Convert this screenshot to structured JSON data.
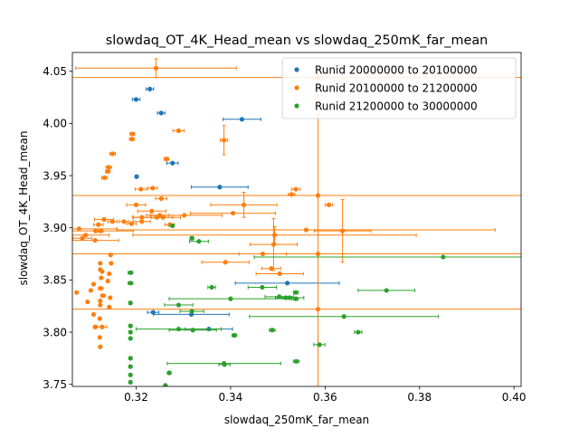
{
  "chart_data": {
    "type": "scatter",
    "title": "slowdaq_OT_4K_Head_mean vs slowdaq_250mK_far_mean",
    "xlabel": "slowdaq_250mK_far_mean",
    "ylabel": "slowdaq_OT_4K_Head_mean",
    "xlim": [
      0.3065,
      0.4015
    ],
    "ylim": [
      3.748,
      4.068
    ],
    "xticks": [
      0.32,
      0.34,
      0.36,
      0.38,
      0.4
    ],
    "xtick_labels": [
      "0.32",
      "0.34",
      "0.36",
      "0.38",
      "0.40"
    ],
    "yticks": [
      3.75,
      3.8,
      3.85,
      3.9,
      3.95,
      4.0,
      4.05
    ],
    "ytick_labels": [
      "3.75",
      "3.80",
      "3.85",
      "3.90",
      "3.95",
      "4.00",
      "4.05"
    ],
    "grid": false,
    "legend_position": "top-right",
    "error_bars": true,
    "series": [
      {
        "name": "Runid 20000000 to 20100000",
        "color": "#1f77b4",
        "points": [
          {
            "x": 0.32,
            "y": 4.023,
            "xerr": 0.0008
          },
          {
            "x": 0.3229,
            "y": 4.033,
            "xerr": 0.0008
          },
          {
            "x": 0.3253,
            "y": 4.01,
            "xerr": 0.0008
          },
          {
            "x": 0.3424,
            "y": 4.004,
            "xerr": 0.004
          },
          {
            "x": 0.3277,
            "y": 3.962,
            "xerr": 0.0012
          },
          {
            "x": 0.3201,
            "y": 3.949,
            "xerr": 0.0003
          },
          {
            "x": 0.3377,
            "y": 3.939,
            "xerr": 0.006
          },
          {
            "x": 0.352,
            "y": 3.847,
            "xerr": 0.011
          },
          {
            "x": 0.3236,
            "y": 3.819,
            "xerr": 0.0012
          },
          {
            "x": 0.3317,
            "y": 3.817,
            "xerr": 0.008
          },
          {
            "x": 0.3354,
            "y": 3.803,
            "xerr": 0.005
          }
        ]
      },
      {
        "name": "Runid 20100000 to 21200000",
        "color": "#ff7f0e",
        "points": [
          {
            "x": 0.3242,
            "y": 4.053,
            "xerr": 0.017,
            "yerr": 0.009
          },
          {
            "x": 0.3585,
            "y": 4.044,
            "xerr": 0.09
          },
          {
            "x": 0.329,
            "y": 3.993,
            "xerr": 0.0012
          },
          {
            "x": 0.3191,
            "y": 3.985,
            "xerr": 0.0005
          },
          {
            "x": 0.3192,
            "y": 3.99,
            "xerr": 0.0005
          },
          {
            "x": 0.3386,
            "y": 3.984,
            "xerr": 0.0008,
            "yerr": 0.014
          },
          {
            "x": 0.315,
            "y": 3.971,
            "xerr": 0.0006
          },
          {
            "x": 0.3264,
            "y": 3.966,
            "xerr": 0.0005
          },
          {
            "x": 0.3142,
            "y": 3.958,
            "xerr": 0.0006
          },
          {
            "x": 0.314,
            "y": 3.954,
            "xerr": 0.0005
          },
          {
            "x": 0.3133,
            "y": 3.948,
            "xerr": 0.0006
          },
          {
            "x": 0.3585,
            "y": 3.931,
            "xerr": 0.07
          },
          {
            "x": 0.321,
            "y": 3.937,
            "xerr": 0.0012
          },
          {
            "x": 0.3235,
            "y": 3.938,
            "xerr": 0.001
          },
          {
            "x": 0.3538,
            "y": 3.937,
            "xerr": 0.0009
          },
          {
            "x": 0.3529,
            "y": 3.932,
            "xerr": 0.0007
          },
          {
            "x": 0.3253,
            "y": 3.928,
            "xerr": 0.0012
          },
          {
            "x": 0.32,
            "y": 3.922,
            "xerr": 0.002
          },
          {
            "x": 0.3428,
            "y": 3.922,
            "xerr": 0.007,
            "yerr": 0.012
          },
          {
            "x": 0.3608,
            "y": 3.922,
            "xerr": 0.0008
          },
          {
            "x": 0.3233,
            "y": 3.916,
            "xerr": 0.003
          },
          {
            "x": 0.3405,
            "y": 3.914,
            "xerr": 0.009
          },
          {
            "x": 0.3302,
            "y": 3.912,
            "xerr": 0.008
          },
          {
            "x": 0.3257,
            "y": 3.91,
            "xerr": 0.002
          },
          {
            "x": 0.3212,
            "y": 3.91,
            "xerr": 0.002
          },
          {
            "x": 0.3132,
            "y": 3.908,
            "xerr": 0.002
          },
          {
            "x": 0.315,
            "y": 3.906,
            "xerr": 0.001
          },
          {
            "x": 0.3174,
            "y": 3.906,
            "xerr": 0.001
          },
          {
            "x": 0.319,
            "y": 3.904,
            "xerr": 0.001
          },
          {
            "x": 0.312,
            "y": 3.903,
            "xerr": 0.001
          },
          {
            "x": 0.3114,
            "y": 3.897,
            "xerr": 0.008
          },
          {
            "x": 0.3125,
            "y": 3.897,
            "xerr": 0.0005
          },
          {
            "x": 0.3212,
            "y": 3.906,
            "xerr": 0.0018
          },
          {
            "x": 0.3271,
            "y": 3.903,
            "xerr": 0.001
          },
          {
            "x": 0.3244,
            "y": 3.91,
            "xerr": 0.005
          },
          {
            "x": 0.325,
            "y": 3.912,
            "xerr": 0.002
          },
          {
            "x": 0.3079,
            "y": 3.899,
            "xerr": 0.008
          },
          {
            "x": 0.3093,
            "y": 3.893,
            "xerr": 0.005
          },
          {
            "x": 0.3086,
            "y": 3.89,
            "xerr": 0.002
          },
          {
            "x": 0.3113,
            "y": 3.888,
            "xerr": 0.005
          },
          {
            "x": 0.356,
            "y": 3.898,
            "xerr": 0.04
          },
          {
            "x": 0.3637,
            "y": 3.897,
            "xerr": 0.006,
            "yerr": 0.03
          },
          {
            "x": 0.3493,
            "y": 3.893,
            "xerr": 0.03,
            "yerr": 0.008
          },
          {
            "x": 0.3491,
            "y": 3.884,
            "xerr": 0.005,
            "yerr": 0.025
          },
          {
            "x": 0.3585,
            "y": 3.875,
            "xerr": 0.055,
            "yerr": 0.18
          },
          {
            "x": 0.3146,
            "y": 3.874,
            "xerr": 0.0002
          },
          {
            "x": 0.3468,
            "y": 3.875,
            "xerr": 0.005
          },
          {
            "x": 0.3389,
            "y": 3.867,
            "xerr": 0.005
          },
          {
            "x": 0.3486,
            "y": 3.861,
            "xerr": 0.002
          },
          {
            "x": 0.3124,
            "y": 3.866,
            "xerr": 0.0001
          },
          {
            "x": 0.3147,
            "y": 3.866,
            "xerr": 0.0001
          },
          {
            "x": 0.3124,
            "y": 3.86,
            "xerr": 0.0001
          },
          {
            "x": 0.3128,
            "y": 3.858,
            "xerr": 0.0001
          },
          {
            "x": 0.3143,
            "y": 3.856,
            "xerr": 0.0002
          },
          {
            "x": 0.3126,
            "y": 3.852,
            "xerr": 0.0002
          },
          {
            "x": 0.314,
            "y": 3.849,
            "xerr": 0.0002
          },
          {
            "x": 0.311,
            "y": 3.846,
            "xerr": 0.0002
          },
          {
            "x": 0.3125,
            "y": 3.842,
            "xerr": 0.0005
          },
          {
            "x": 0.3104,
            "y": 3.84,
            "xerr": 0.0002
          },
          {
            "x": 0.3074,
            "y": 3.838,
            "xerr": 0.0001
          },
          {
            "x": 0.313,
            "y": 3.835,
            "xerr": 0.0005
          },
          {
            "x": 0.3145,
            "y": 3.833,
            "xerr": 0.0002
          },
          {
            "x": 0.3124,
            "y": 3.83,
            "xerr": 0.0002
          },
          {
            "x": 0.3097,
            "y": 3.829,
            "xerr": 0.0002
          },
          {
            "x": 0.3124,
            "y": 3.826,
            "xerr": 0.0002
          },
          {
            "x": 0.3143,
            "y": 3.824,
            "xerr": 0.0002
          },
          {
            "x": 0.3585,
            "y": 3.822,
            "xerr": 0.08
          },
          {
            "x": 0.311,
            "y": 3.817,
            "xerr": 0.0002
          },
          {
            "x": 0.3123,
            "y": 3.813,
            "xerr": 0.0002
          },
          {
            "x": 0.3128,
            "y": 3.805,
            "xerr": 0.001
          },
          {
            "x": 0.3113,
            "y": 3.805,
            "xerr": 0.0003
          },
          {
            "x": 0.3123,
            "y": 3.795,
            "xerr": 0.0001
          },
          {
            "x": 0.3124,
            "y": 3.786,
            "xerr": 0.0001
          },
          {
            "x": 0.3504,
            "y": 3.856,
            "xerr": 0.005
          }
        ]
      },
      {
        "name": "Runid 21200000 to 30000000",
        "color": "#2ca02c",
        "points": [
          {
            "x": 0.3277,
            "y": 3.902,
            "xerr": 0.0003
          },
          {
            "x": 0.3318,
            "y": 3.89,
            "xerr": 0.0004
          },
          {
            "x": 0.3333,
            "y": 3.887,
            "xerr": 0.002
          },
          {
            "x": 0.3188,
            "y": 3.857,
            "xerr": 0.0005
          },
          {
            "x": 0.3188,
            "y": 3.847,
            "xerr": 0.0005
          },
          {
            "x": 0.336,
            "y": 3.843,
            "xerr": 0.0008
          },
          {
            "x": 0.3467,
            "y": 3.843,
            "xerr": 0.003
          },
          {
            "x": 0.373,
            "y": 3.84,
            "xerr": 0.006
          },
          {
            "x": 0.3538,
            "y": 3.838,
            "xerr": 0.0005
          },
          {
            "x": 0.3503,
            "y": 3.834,
            "xerr": 0.003
          },
          {
            "x": 0.3517,
            "y": 3.833,
            "xerr": 0.0007
          },
          {
            "x": 0.3525,
            "y": 3.833,
            "xerr": 0.003
          },
          {
            "x": 0.3538,
            "y": 3.832,
            "xerr": 0.0005
          },
          {
            "x": 0.34,
            "y": 3.832,
            "xerr": 0.013
          },
          {
            "x": 0.3188,
            "y": 3.828,
            "xerr": 0.0003
          },
          {
            "x": 0.329,
            "y": 3.826,
            "xerr": 0.003
          },
          {
            "x": 0.3318,
            "y": 3.82,
            "xerr": 0.0025
          },
          {
            "x": 0.364,
            "y": 3.815,
            "xerr": 0.02
          },
          {
            "x": 0.3188,
            "y": 3.806,
            "xerr": 0.0003
          },
          {
            "x": 0.3188,
            "y": 3.8,
            "xerr": 0.0003
          },
          {
            "x": 0.329,
            "y": 3.803,
            "xerr": 0.009
          },
          {
            "x": 0.332,
            "y": 3.802,
            "xerr": 0.005
          },
          {
            "x": 0.3488,
            "y": 3.802,
            "xerr": 0.0006
          },
          {
            "x": 0.367,
            "y": 3.8,
            "xerr": 0.0008
          },
          {
            "x": 0.3188,
            "y": 3.794,
            "xerr": 0.0003
          },
          {
            "x": 0.3408,
            "y": 3.797,
            "xerr": 0.0005
          },
          {
            "x": 0.3588,
            "y": 3.788,
            "xerr": 0.0012
          },
          {
            "x": 0.3188,
            "y": 3.775,
            "xerr": 0.0003
          },
          {
            "x": 0.3539,
            "y": 3.772,
            "xerr": 0.0006
          },
          {
            "x": 0.3387,
            "y": 3.769,
            "xerr": 0.0012
          },
          {
            "x": 0.3386,
            "y": 3.77,
            "xerr": 0.012
          },
          {
            "x": 0.3188,
            "y": 3.767,
            "xerr": 0.0003
          },
          {
            "x": 0.327,
            "y": 3.761,
            "xerr": 0.0004
          },
          {
            "x": 0.3188,
            "y": 3.759,
            "xerr": 0.0003
          },
          {
            "x": 0.3188,
            "y": 3.752,
            "xerr": 0.0003
          },
          {
            "x": 0.3262,
            "y": 3.749,
            "xerr": 0.0002
          },
          {
            "x": 0.385,
            "y": 3.872,
            "xerr": 0.04
          }
        ]
      }
    ]
  }
}
